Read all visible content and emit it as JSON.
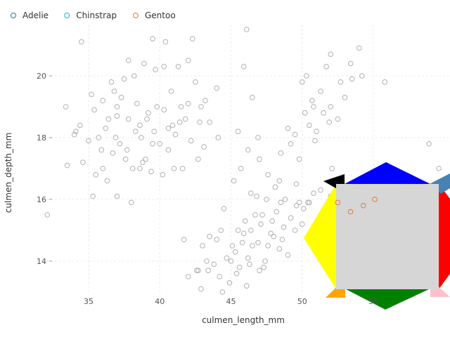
{
  "chart_data": {
    "type": "scatter",
    "title": "",
    "xlabel": "culmen_length_mm",
    "ylabel": "culmen_depth_mm",
    "xlim": [
      32,
      60
    ],
    "ylim": [
      13,
      21.5
    ],
    "x_ticks": [
      35,
      40,
      45,
      50,
      55
    ],
    "y_ticks": [
      14,
      16,
      18,
      20
    ],
    "grid": true,
    "legend_position": "top-left",
    "legend": [
      {
        "name": "Adelie",
        "color": "#1f77b4"
      },
      {
        "name": "Chinstrap",
        "color": "#17becf"
      },
      {
        "name": "Gentoo",
        "color": "#e07b39"
      }
    ],
    "series": [
      {
        "name": "Adelie",
        "color": "#b0b0b0",
        "points": [
          [
            34.5,
            21.1
          ],
          [
            37.8,
            20.5
          ],
          [
            38.2,
            20.0
          ],
          [
            37.5,
            19.9
          ],
          [
            36.8,
            19.5
          ],
          [
            35.2,
            19.4
          ],
          [
            36.0,
            19.2
          ],
          [
            37.0,
            19.0
          ],
          [
            35.4,
            18.9
          ],
          [
            33.4,
            19.0
          ],
          [
            34.0,
            18.1
          ],
          [
            34.4,
            18.4
          ],
          [
            35.0,
            17.9
          ],
          [
            35.7,
            18.0
          ],
          [
            36.2,
            18.3
          ],
          [
            37.0,
            18.7
          ],
          [
            37.8,
            18.6
          ],
          [
            38.6,
            18.4
          ],
          [
            39.2,
            18.8
          ],
          [
            39.6,
            18.2
          ],
          [
            40.3,
            18.9
          ],
          [
            40.9,
            18.4
          ],
          [
            41.4,
            18.5
          ],
          [
            42.0,
            19.1
          ],
          [
            42.5,
            19.8
          ],
          [
            43.2,
            19.2
          ],
          [
            42.8,
            18.5
          ],
          [
            41.1,
            18.1
          ],
          [
            40.6,
            17.6
          ],
          [
            39.5,
            17.8
          ],
          [
            38.8,
            17.2
          ],
          [
            38.1,
            17.0
          ],
          [
            37.6,
            17.3
          ],
          [
            36.7,
            17.5
          ],
          [
            36.0,
            17.0
          ],
          [
            35.5,
            16.8
          ],
          [
            34.6,
            17.2
          ],
          [
            33.5,
            17.1
          ],
          [
            32.1,
            15.5
          ],
          [
            35.3,
            16.1
          ],
          [
            36.3,
            16.6
          ],
          [
            37.0,
            16.1
          ],
          [
            38.0,
            15.9
          ],
          [
            38.6,
            17.0
          ],
          [
            39.0,
            17.3
          ],
          [
            40.2,
            16.8
          ],
          [
            41.6,
            17.0
          ],
          [
            42.2,
            17.9
          ],
          [
            43.1,
            17.7
          ],
          [
            44.1,
            18.0
          ],
          [
            38.9,
            20.4
          ],
          [
            39.7,
            20.2
          ],
          [
            40.3,
            20.3
          ],
          [
            41.3,
            20.3
          ],
          [
            42.0,
            20.5
          ],
          [
            39.5,
            21.2
          ],
          [
            40.4,
            21.1
          ],
          [
            42.3,
            21.2
          ],
          [
            36.6,
            19.8
          ],
          [
            38.4,
            19.1
          ],
          [
            39.1,
            18.6
          ],
          [
            36.9,
            18.0
          ],
          [
            38.7,
            18.0
          ],
          [
            40.0,
            17.8
          ],
          [
            41.0,
            17.0
          ],
          [
            42.7,
            17.3
          ],
          [
            35.9,
            17.6
          ],
          [
            34.1,
            18.2
          ],
          [
            37.3,
            19.3
          ],
          [
            40.8,
            19.5
          ],
          [
            41.5,
            19.0
          ],
          [
            43.5,
            18.5
          ],
          [
            44.0,
            19.6
          ],
          [
            39.8,
            19.0
          ],
          [
            38.3,
            18.2
          ],
          [
            37.2,
            17.8
          ],
          [
            39.4,
            16.9
          ],
          [
            41.8,
            18.6
          ],
          [
            42.9,
            19.0
          ],
          [
            37.7,
            17.6
          ],
          [
            36.4,
            18.6
          ],
          [
            40.6,
            18.3
          ]
        ]
      },
      {
        "name": "Chinstrap",
        "color": "#b0b0b0",
        "points": [
          [
            46.1,
            21.5
          ],
          [
            45.9,
            20.3
          ],
          [
            46.5,
            19.3
          ],
          [
            46.9,
            18.0
          ],
          [
            46.2,
            17.6
          ],
          [
            45.5,
            18.2
          ],
          [
            47.0,
            17.3
          ],
          [
            47.6,
            16.8
          ],
          [
            48.5,
            17.5
          ],
          [
            49.0,
            18.3
          ],
          [
            49.5,
            18.1
          ],
          [
            50.0,
            19.8
          ],
          [
            50.3,
            20.0
          ],
          [
            51.3,
            19.5
          ],
          [
            51.5,
            18.8
          ],
          [
            52.0,
            19.0
          ],
          [
            52.7,
            19.8
          ],
          [
            53.5,
            19.9
          ],
          [
            54.2,
            20.0
          ],
          [
            55.8,
            19.8
          ],
          [
            52.0,
            20.7
          ],
          [
            51.7,
            20.3
          ],
          [
            50.8,
            19.0
          ],
          [
            50.5,
            18.4
          ],
          [
            49.2,
            17.8
          ],
          [
            48.1,
            16.4
          ],
          [
            49.8,
            17.3
          ],
          [
            50.9,
            17.9
          ],
          [
            45.2,
            16.6
          ],
          [
            46.4,
            16.2
          ],
          [
            47.5,
            16.0
          ],
          [
            45.7,
            17.0
          ],
          [
            50.2,
            18.8
          ],
          [
            51.0,
            18.2
          ],
          [
            52.5,
            18.6
          ],
          [
            53.0,
            19.3
          ],
          [
            51.9,
            18.5
          ],
          [
            49.6,
            16.5
          ],
          [
            48.4,
            16.6
          ],
          [
            50.7,
            19.2
          ],
          [
            54.0,
            20.9
          ],
          [
            53.4,
            20.4
          ]
        ]
      },
      {
        "name": "Gentoo",
        "color": "#b0b0b0",
        "points": [
          [
            46.1,
            13.2
          ],
          [
            45.4,
            13.6
          ],
          [
            44.9,
            13.3
          ],
          [
            43.4,
            13.7
          ],
          [
            44.4,
            13.0
          ],
          [
            42.7,
            13.7
          ],
          [
            45.1,
            14.5
          ],
          [
            46.5,
            14.5
          ],
          [
            47.6,
            14.5
          ],
          [
            48.4,
            14.4
          ],
          [
            49.0,
            14.2
          ],
          [
            50.0,
            15.2
          ],
          [
            48.7,
            15.1
          ],
          [
            47.2,
            15.5
          ],
          [
            46.8,
            16.1
          ],
          [
            45.5,
            15.0
          ],
          [
            44.5,
            15.7
          ],
          [
            43.3,
            14.0
          ],
          [
            42.0,
            13.5
          ],
          [
            41.7,
            14.7
          ],
          [
            42.9,
            13.1
          ],
          [
            43.8,
            13.9
          ],
          [
            45.0,
            14.0
          ],
          [
            46.2,
            14.1
          ],
          [
            46.9,
            14.6
          ],
          [
            47.4,
            14.0
          ],
          [
            48.2,
            15.6
          ],
          [
            49.6,
            15.8
          ],
          [
            50.5,
            15.9
          ],
          [
            45.8,
            14.6
          ],
          [
            46.4,
            15.0
          ],
          [
            44.0,
            14.7
          ],
          [
            47.9,
            15.3
          ],
          [
            49.2,
            15.4
          ],
          [
            48.6,
            14.7
          ],
          [
            46.0,
            15.3
          ],
          [
            44.7,
            14.1
          ],
          [
            45.6,
            13.8
          ],
          [
            47.3,
            13.8
          ],
          [
            48.0,
            14.8
          ],
          [
            42.6,
            13.7
          ],
          [
            43.5,
            14.8
          ],
          [
            44.3,
            15.0
          ],
          [
            45.3,
            14.3
          ],
          [
            46.7,
            15.5
          ],
          [
            47.8,
            14.9
          ],
          [
            48.8,
            16.0
          ],
          [
            49.5,
            15.0
          ],
          [
            50.1,
            15.7
          ],
          [
            51.3,
            16.3
          ],
          [
            52.0,
            16.1
          ],
          [
            50.8,
            16.2
          ],
          [
            49.8,
            15.9
          ],
          [
            46.3,
            13.9
          ],
          [
            47.0,
            13.7
          ],
          [
            45.9,
            14.9
          ],
          [
            44.2,
            13.5
          ],
          [
            43.0,
            14.5
          ],
          [
            47.1,
            15.2
          ],
          [
            48.5,
            15.9
          ],
          [
            52.1,
            17.0
          ],
          [
            55.1,
            16.0
          ],
          [
            58.9,
            17.8
          ],
          [
            59.6,
            17.0
          ],
          [
            51.5,
            15.6
          ],
          [
            50.4,
            15.9
          ]
        ]
      }
    ],
    "highlighted_points": [
      [
        52.5,
        15.9
      ],
      [
        53.4,
        15.6
      ],
      [
        54.3,
        15.8
      ],
      [
        55.1,
        16.0
      ]
    ],
    "highlight_color": "#e07b39"
  },
  "overlay_colors": {
    "center": "#d6d6d6",
    "top": "#0000ff",
    "bottom": "#008000",
    "left": "#ffff00",
    "right": "#ff0000",
    "top_left": "#000000",
    "top_right": "#4682b4",
    "bottom_left": "#ffa500",
    "bottom_right": "#ffc0cb"
  }
}
